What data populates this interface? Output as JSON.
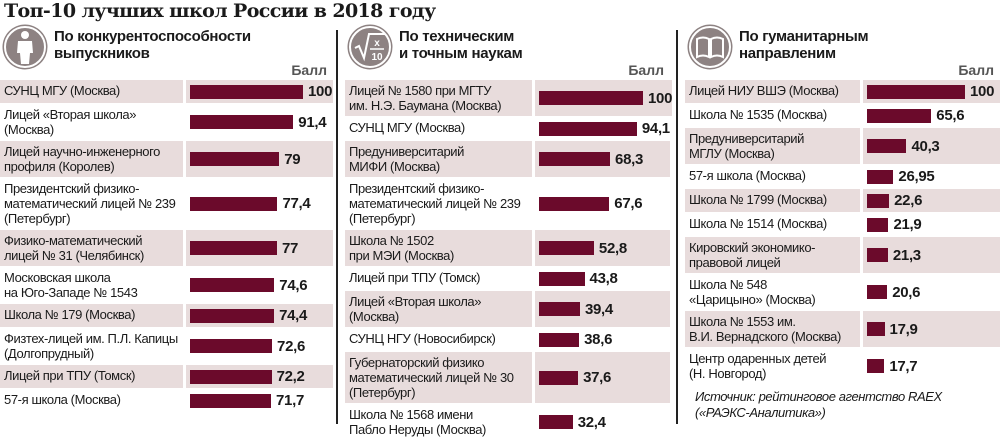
{
  "title": "Топ-10 лучших школ России в 2018 году",
  "score_label": "Балл",
  "colors": {
    "bar": "#6b0a2b",
    "shade": "#e8dcdc",
    "icon": "#8d8282"
  },
  "source": "Источник: рейтинговое агентство RAEX\n(«РАЭКС-Аналитика»)",
  "chart_data": [
    {
      "type": "bar",
      "title": "По конкурентоспособности\nвыпускников",
      "icon": "person-icon",
      "ylabel": "Балл",
      "xlim": [
        0,
        100
      ],
      "categories": [
        "СУНЦ МГУ (Москва)",
        "Лицей «Вторая школа»\n(Москва)",
        "Лицей научно-инженерного\nпрофиля (Королев)",
        "Президентский физико-\nматематический лицей № 239\n(Петербург)",
        "Физико-математический\nлицей № 31 (Челябинск)",
        "Московская школа\nна Юго-Западе № 1543",
        "Школа № 179 (Москва)",
        "Физтех-лицей им. П.Л. Капицы\n(Долгопрудный)",
        "Лицей при ТПУ (Томск)",
        "57-я школа (Москва)"
      ],
      "values": [
        100,
        91.4,
        79,
        77.4,
        77,
        74.6,
        74.4,
        72.6,
        72.2,
        71.7
      ],
      "labels": [
        "100",
        "91,4",
        "79",
        "77,4",
        "77",
        "74,6",
        "74,4",
        "72,6",
        "72,2",
        "71,7"
      ]
    },
    {
      "type": "bar",
      "title": "По техническим\nи точным наукам",
      "icon": "sqrt-x-10-icon",
      "ylabel": "Балл",
      "xlim": [
        0,
        100
      ],
      "categories": [
        "Лицей № 1580 при МГТУ\nим. Н.Э. Баумана (Москва)",
        "СУНЦ МГУ (Москва)",
        "Предуниверситарий\nМИФИ (Москва)",
        "Президентский физико-\nматематический лицей № 239\n(Петербург)",
        "Школа № 1502\nпри МЭИ (Москва)",
        "Лицей при ТПУ (Томск)",
        "Лицей «Вторая школа» (Москва)",
        "СУНЦ НГУ (Новосибирск)",
        "Губернаторский физико\nматематический лицей № 30\n(Петербург)",
        "Школа № 1568 имени\nПабло Неруды (Москва)"
      ],
      "values": [
        100,
        94.1,
        68.3,
        67.6,
        52.8,
        43.8,
        39.4,
        38.6,
        37.6,
        32.4
      ],
      "labels": [
        "100",
        "94,1",
        "68,3",
        "67,6",
        "52,8",
        "43,8",
        "39,4",
        "38,6",
        "37,6",
        "32,4"
      ]
    },
    {
      "type": "bar",
      "title": "По гуманитарным\nнаправленим",
      "icon": "book-icon",
      "ylabel": "Балл",
      "xlim": [
        0,
        100
      ],
      "categories": [
        "Лицей НИУ ВШЭ (Москва)",
        "Школа № 1535 (Москва)",
        "Предуниверситарий\nМГЛУ (Москва)",
        "57-я школа (Москва)",
        "Школа № 1799 (Москва)",
        "Школа № 1514 (Москва)",
        "Кировский экономико-\nправовой лицей",
        "Школа № 548\n«Царицыно» (Москва)",
        "Школа № 1553 им.\nВ.И. Вернадского (Москва)",
        "Центр одаренных детей\n(Н. Новгород)"
      ],
      "values": [
        100,
        65.6,
        40.3,
        26.95,
        22.6,
        21.9,
        21.3,
        20.6,
        17.9,
        17.7
      ],
      "labels": [
        "100",
        "65,6",
        "40,3",
        "26,95",
        "22,6",
        "21,9",
        "21,3",
        "20,6",
        "17,9",
        "17,7"
      ]
    }
  ]
}
